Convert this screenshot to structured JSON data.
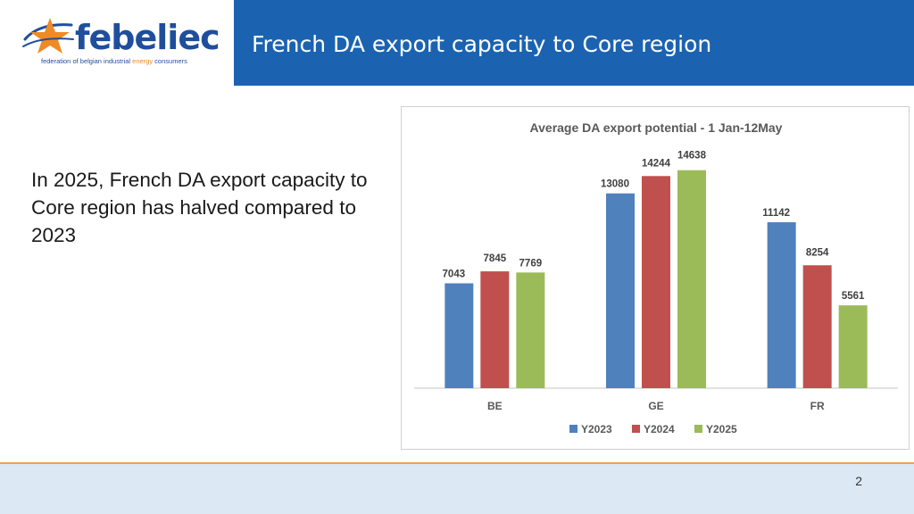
{
  "header": {
    "logo_text": "febeliec",
    "tagline_before": "federation of belgian industrial ",
    "tagline_highlight": "energy",
    "tagline_after": " consumers",
    "title": "French DA export capacity to Core region"
  },
  "body": {
    "text": "In 2025, French DA export capacity to Core region has halved compared to 2023"
  },
  "footer": {
    "page_number": "2"
  },
  "colors": {
    "title_bar": "#1b63b1",
    "logo_blue": "#1f4e9c",
    "logo_orange": "#f08a24",
    "footer_line": "#f0a050",
    "footer_band": "#dce8f4"
  },
  "chart_data": {
    "type": "bar",
    "title": "Average DA export potential - 1 Jan-12May",
    "categories": [
      "BE",
      "GE",
      "FR"
    ],
    "series": [
      {
        "name": "Y2023",
        "color": "#4f81bd",
        "values": [
          7043,
          13080,
          11142
        ]
      },
      {
        "name": "Y2024",
        "color": "#c0504d",
        "values": [
          7845,
          14244,
          8254
        ]
      },
      {
        "name": "Y2025",
        "color": "#9bbb59",
        "values": [
          7769,
          14638,
          5561
        ]
      }
    ],
    "ylim": [
      0,
      16000
    ],
    "grid": false,
    "data_labels": true,
    "legend": "bottom",
    "xlabel": "",
    "ylabel": ""
  }
}
